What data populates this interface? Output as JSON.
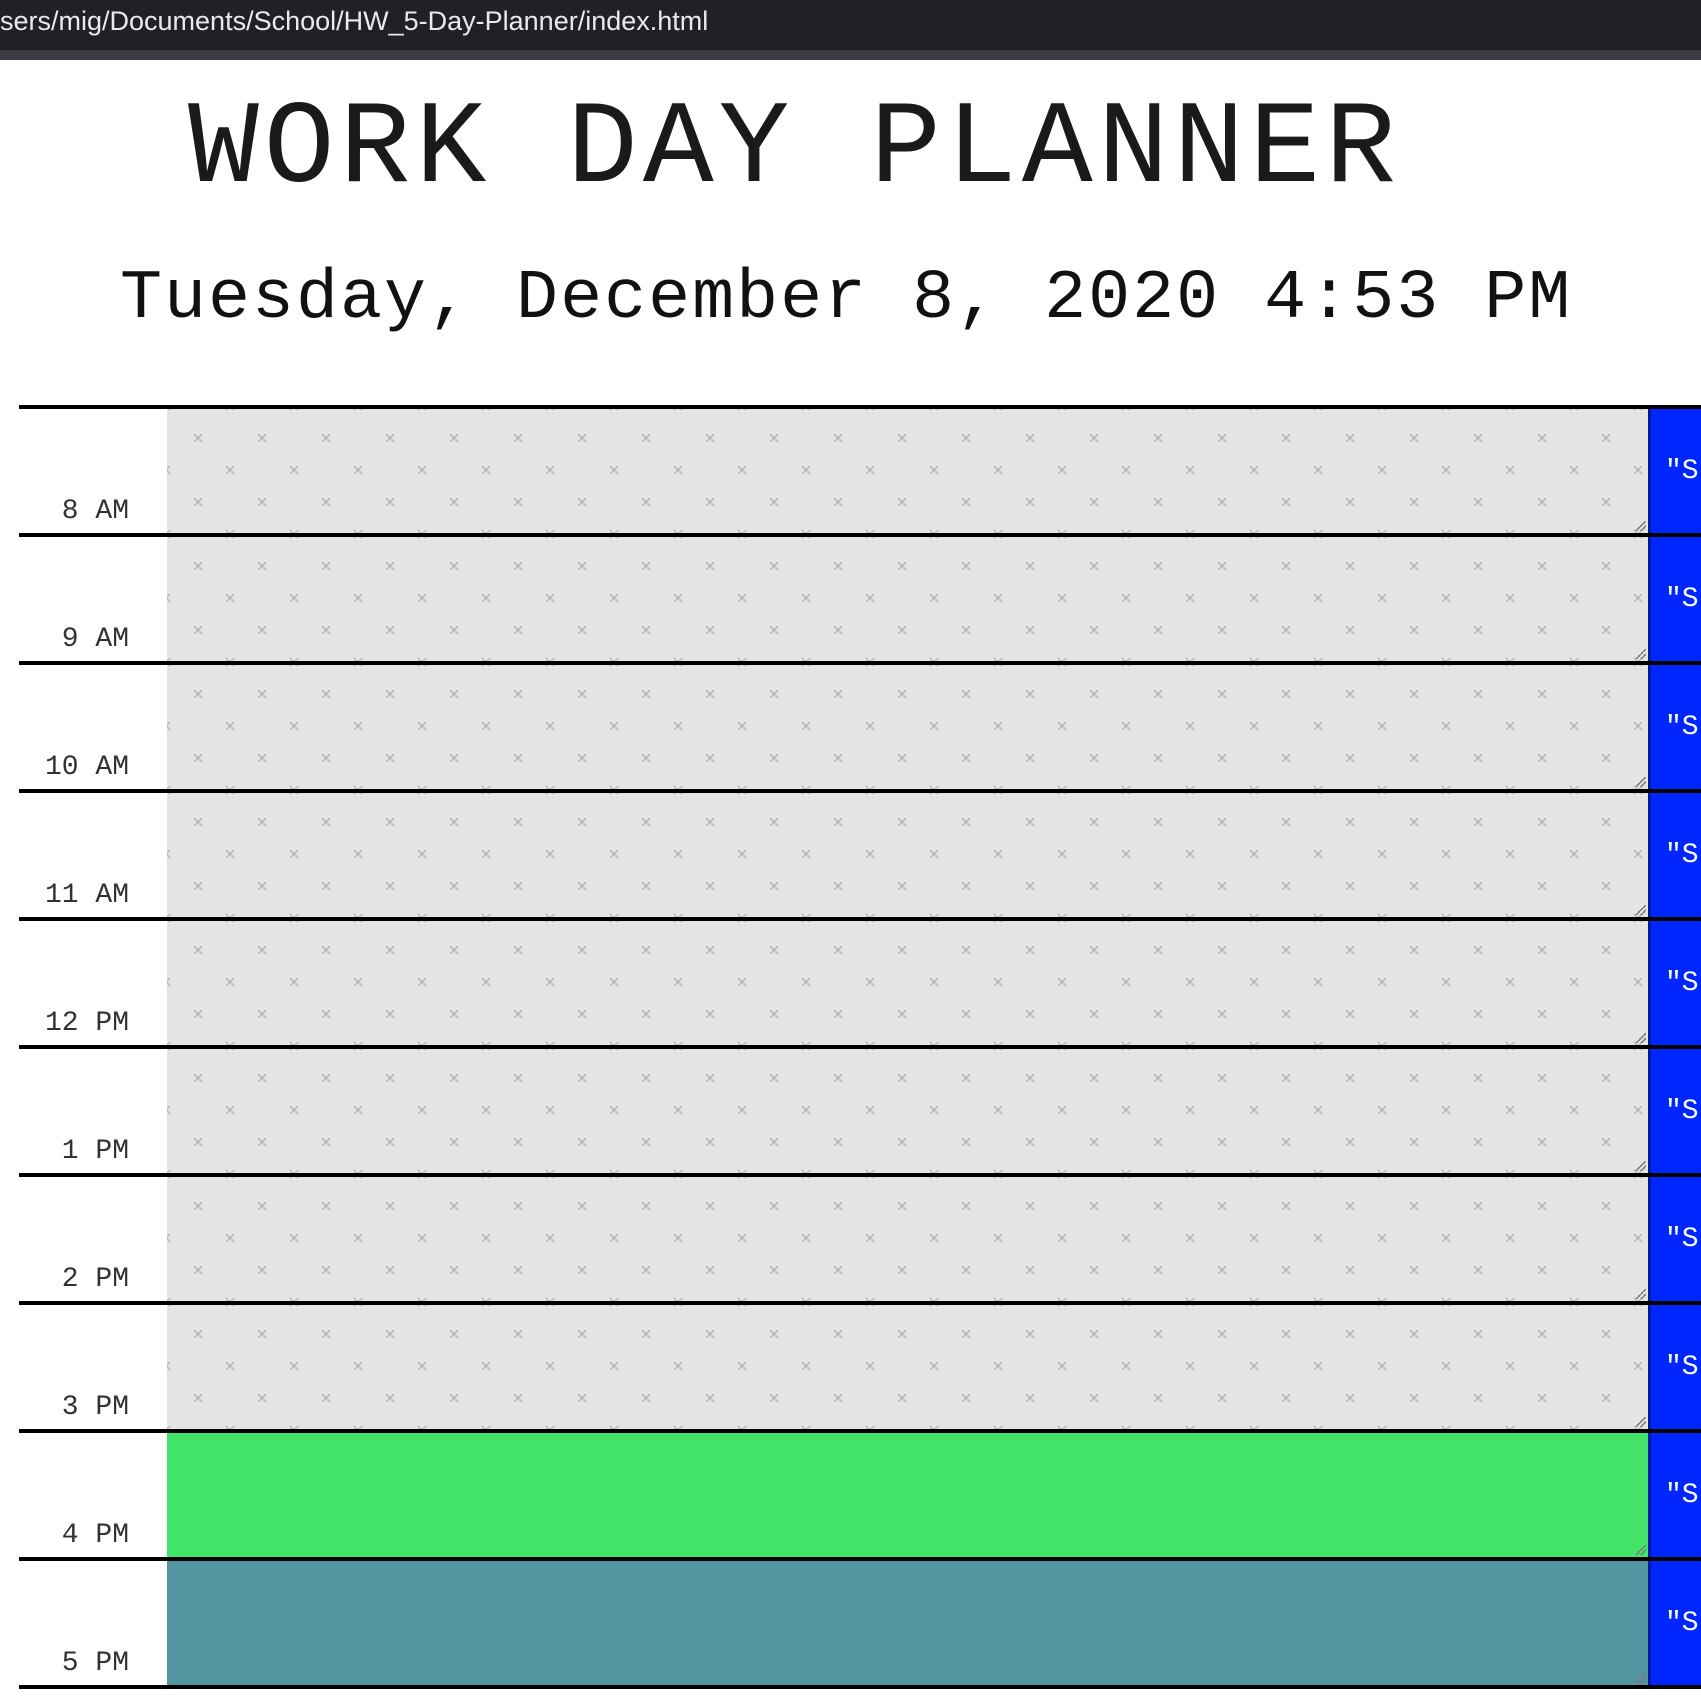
{
  "browser": {
    "url": "sers/mig/Documents/School/HW_5-Day-Planner/index.html"
  },
  "header": {
    "title": "WORK DAY PLANNER",
    "current_datetime": "Tuesday, December 8, 2020 4:53 PM"
  },
  "colors": {
    "past": "#e5e5e5",
    "present": "#43e36a",
    "future": "#5295a0",
    "save_button": "#0026ff"
  },
  "rows": [
    {
      "hour": "8 AM",
      "state": "past",
      "text": "",
      "save_label": "\"S"
    },
    {
      "hour": "9 AM",
      "state": "past",
      "text": "",
      "save_label": "\"S"
    },
    {
      "hour": "10 AM",
      "state": "past",
      "text": "",
      "save_label": "\"S"
    },
    {
      "hour": "11 AM",
      "state": "past",
      "text": "",
      "save_label": "\"S"
    },
    {
      "hour": "12 PM",
      "state": "past",
      "text": "",
      "save_label": "\"S"
    },
    {
      "hour": "1 PM",
      "state": "past",
      "text": "",
      "save_label": "\"S"
    },
    {
      "hour": "2 PM",
      "state": "past",
      "text": "",
      "save_label": "\"S"
    },
    {
      "hour": "3 PM",
      "state": "past",
      "text": "",
      "save_label": "\"S"
    },
    {
      "hour": "4 PM",
      "state": "present",
      "text": "",
      "save_label": "\"S"
    },
    {
      "hour": "5 PM",
      "state": "future",
      "text": "",
      "save_label": "\"S"
    }
  ]
}
